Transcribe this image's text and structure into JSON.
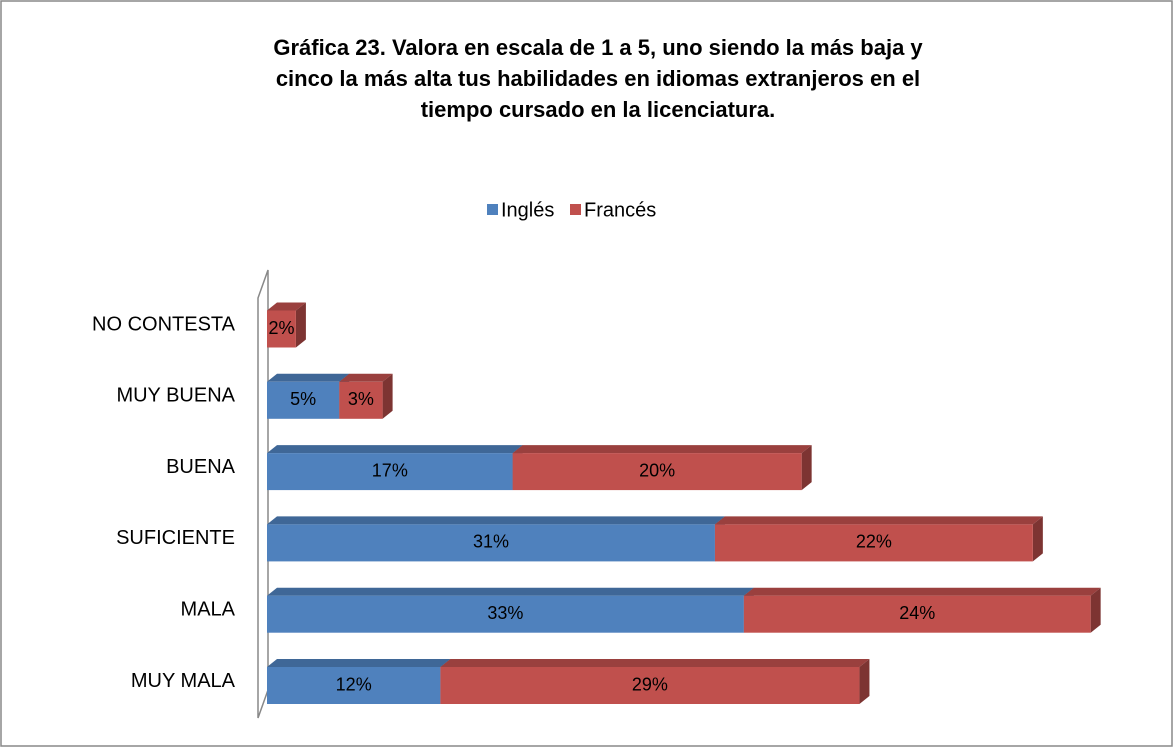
{
  "chart_data": {
    "type": "stacked_barh",
    "title": [
      "Gráfica 23. Valora en escala de 1 a 5, uno siendo la más baja y",
      "cinco la más alta tus habilidades en idiomas extranjeros en el",
      "tiempo cursado en la licenciatura."
    ],
    "categories": [
      "NO CONTESTA",
      "MUY BUENA",
      "BUENA",
      "SUFICIENTE",
      "MALA",
      "MUY MALA"
    ],
    "series": [
      {
        "name": "Inglés",
        "color": "#4f81bd",
        "values": [
          null,
          5,
          17,
          31,
          33,
          12
        ],
        "value_labels": [
          null,
          "5%",
          "17%",
          "31%",
          "33%",
          "12%"
        ]
      },
      {
        "name": "Francés",
        "color": "#c0504d",
        "values": [
          2,
          3,
          20,
          22,
          24,
          29
        ],
        "value_labels": [
          "2%",
          "3%",
          "20%",
          "22%",
          "24%",
          "29%"
        ]
      }
    ],
    "legend": "top"
  }
}
